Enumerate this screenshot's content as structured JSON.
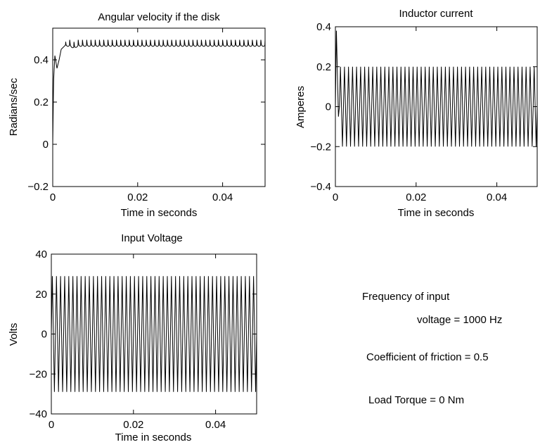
{
  "chart_data": [
    {
      "id": "angular",
      "type": "line",
      "title": "Angular velocity if the disk",
      "xlabel": "Time in seconds",
      "ylabel": "Radians/sec",
      "xlim": [
        0,
        0.05
      ],
      "ylim": [
        -0.2,
        0.55
      ],
      "xticks": [
        0,
        0.02,
        0.04
      ],
      "xtick_labels": [
        "0",
        "0.02",
        "0.04"
      ],
      "yticks": [
        -0.2,
        0,
        0.2,
        0.4
      ],
      "ytick_labels": [
        "−0.2",
        "0",
        "0.2",
        "0.4"
      ],
      "grid": false,
      "series": [
        {
          "x": [
            0,
            0.0002,
            0.0005,
            0.001,
            0.0015,
            0.002,
            0.003,
            0.004,
            0.005,
            0.006,
            0.008,
            0.01,
            0.015,
            0.02,
            0.025,
            0.03,
            0.035,
            0.04,
            0.045,
            0.05
          ],
          "y": [
            0,
            0.3,
            0.42,
            0.36,
            0.4,
            0.45,
            0.47,
            0.47,
            0.46,
            0.47,
            0.47,
            0.47,
            0.47,
            0.47,
            0.47,
            0.47,
            0.47,
            0.47,
            0.47,
            0.47
          ],
          "ripple_amplitude": 0.025,
          "ripple_frequency_hz": 1000
        }
      ]
    },
    {
      "id": "current",
      "type": "line",
      "title": "Inductor current",
      "xlabel": "Time in seconds",
      "ylabel": "Amperes",
      "xlim": [
        0,
        0.05
      ],
      "ylim": [
        -0.4,
        0.4
      ],
      "xticks": [
        0,
        0.02,
        0.04
      ],
      "xtick_labels": [
        "0",
        "0.02",
        "0.04"
      ],
      "yticks": [
        -0.4,
        -0.2,
        0,
        0.2,
        0.4
      ],
      "ytick_labels": [
        "−0.4",
        "−0.2",
        "0",
        "0.2",
        "0.4"
      ],
      "grid": false,
      "series": [
        {
          "type": "oscillation",
          "frequency_hz": 1000,
          "offset": 0,
          "amplitude": 0.2,
          "initial_peak": 0.38,
          "initial_trough": -0.05
        }
      ]
    },
    {
      "id": "voltage",
      "type": "line",
      "title": "Input Voltage",
      "xlabel": "Time in seconds",
      "ylabel": "Volts",
      "xlim": [
        0,
        0.05
      ],
      "ylim": [
        -40,
        40
      ],
      "xticks": [
        0,
        0.02,
        0.04
      ],
      "xtick_labels": [
        "0",
        "0.02",
        "0.04"
      ],
      "yticks": [
        -40,
        -20,
        0,
        20,
        40
      ],
      "ytick_labels": [
        "−40",
        "−20",
        "0",
        "20",
        "40"
      ],
      "grid": false,
      "series": [
        {
          "type": "oscillation",
          "frequency_hz": 1000,
          "offset": 0,
          "amplitude": 29
        }
      ]
    }
  ],
  "notes": {
    "frequency_line1": "Frequency of input",
    "frequency_line2": "voltage = 1000 Hz",
    "friction": "Coefficient of friction = 0.5",
    "torque": "Load Torque = 0 Nm"
  },
  "colors": {
    "line": "#000000",
    "axes": "#000000",
    "background": "#ffffff"
  }
}
